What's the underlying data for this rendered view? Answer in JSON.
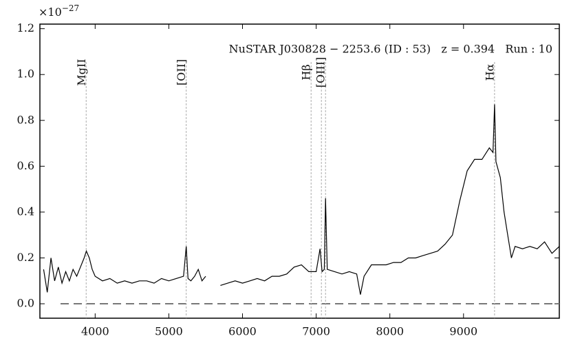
{
  "chart_data": {
    "type": "line",
    "annotation": "NuSTAR J030828 − 2253.6 (ID : 53)   z = 0.394   Run : 10",
    "offset_base": "×10",
    "offset_exp": "−27",
    "x": [
      3300,
      3350,
      3400,
      3450,
      3500,
      3550,
      3600,
      3650,
      3700,
      3750,
      3800,
      3850,
      3880,
      3920,
      3960,
      4000,
      4100,
      4200,
      4300,
      4400,
      4500,
      4600,
      4700,
      4800,
      4900,
      5000,
      5100,
      5200,
      5236,
      5260,
      5300,
      5350,
      5400,
      5450,
      5500,
      5550,
      5700,
      5800,
      5900,
      6000,
      6100,
      6200,
      6300,
      6400,
      6500,
      6600,
      6700,
      6800,
      6900,
      7000,
      7052,
      7080,
      7110,
      7127,
      7150,
      7250,
      7350,
      7450,
      7550,
      7600,
      7650,
      7750,
      7850,
      7950,
      8050,
      8150,
      8250,
      8350,
      8450,
      8550,
      8650,
      8750,
      8850,
      8950,
      9050,
      9150,
      9250,
      9350,
      9400,
      9421,
      9440,
      9500,
      9550,
      9600,
      9650,
      9700,
      9800,
      9900,
      10000,
      10100,
      10200,
      10300
    ],
    "series": [
      {
        "color": "#000000",
        "values": [
          0.15,
          0.05,
          0.2,
          0.1,
          0.16,
          0.09,
          0.14,
          0.1,
          0.15,
          0.12,
          0.16,
          0.2,
          0.23,
          0.2,
          0.15,
          0.12,
          0.1,
          0.11,
          0.09,
          0.1,
          0.09,
          0.1,
          0.1,
          0.09,
          0.11,
          0.1,
          0.11,
          0.12,
          0.25,
          0.11,
          0.1,
          0.12,
          0.15,
          0.1,
          0.12,
          null,
          0.08,
          0.09,
          0.1,
          0.09,
          0.1,
          0.11,
          0.1,
          0.12,
          0.12,
          0.13,
          0.16,
          0.17,
          0.14,
          0.14,
          0.24,
          0.14,
          0.15,
          0.46,
          0.15,
          0.14,
          0.13,
          0.14,
          0.13,
          0.04,
          0.12,
          0.17,
          0.17,
          0.17,
          0.18,
          0.18,
          0.2,
          0.2,
          0.21,
          0.22,
          0.23,
          0.26,
          0.3,
          0.45,
          0.58,
          0.63,
          0.63,
          0.68,
          0.66,
          0.87,
          0.62,
          0.55,
          0.4,
          0.3,
          0.2,
          0.25,
          0.24,
          0.25,
          0.24,
          0.27,
          0.22,
          0.25
        ]
      }
    ],
    "lines": [
      {
        "label": "MgII",
        "x": [
          3878
        ]
      },
      {
        "label": "[OII]",
        "x": [
          5236
        ]
      },
      {
        "label": "Hβ",
        "x": [
          6931
        ]
      },
      {
        "label": "[OIII]",
        "x": [
          7071,
          7127
        ]
      },
      {
        "label": "Hα",
        "x": [
          9421
        ]
      }
    ],
    "xlim": [
      3250,
      10300
    ],
    "ylim": [
      -0.063,
      1.22
    ],
    "xticks": [
      4000,
      5000,
      6000,
      7000,
      8000,
      9000
    ],
    "yticks": [
      {
        "value": 0,
        "label": "0.0"
      },
      0.2,
      0.4,
      0.6,
      0.8,
      {
        "value": 1,
        "label": "1.0"
      },
      1.2
    ]
  }
}
